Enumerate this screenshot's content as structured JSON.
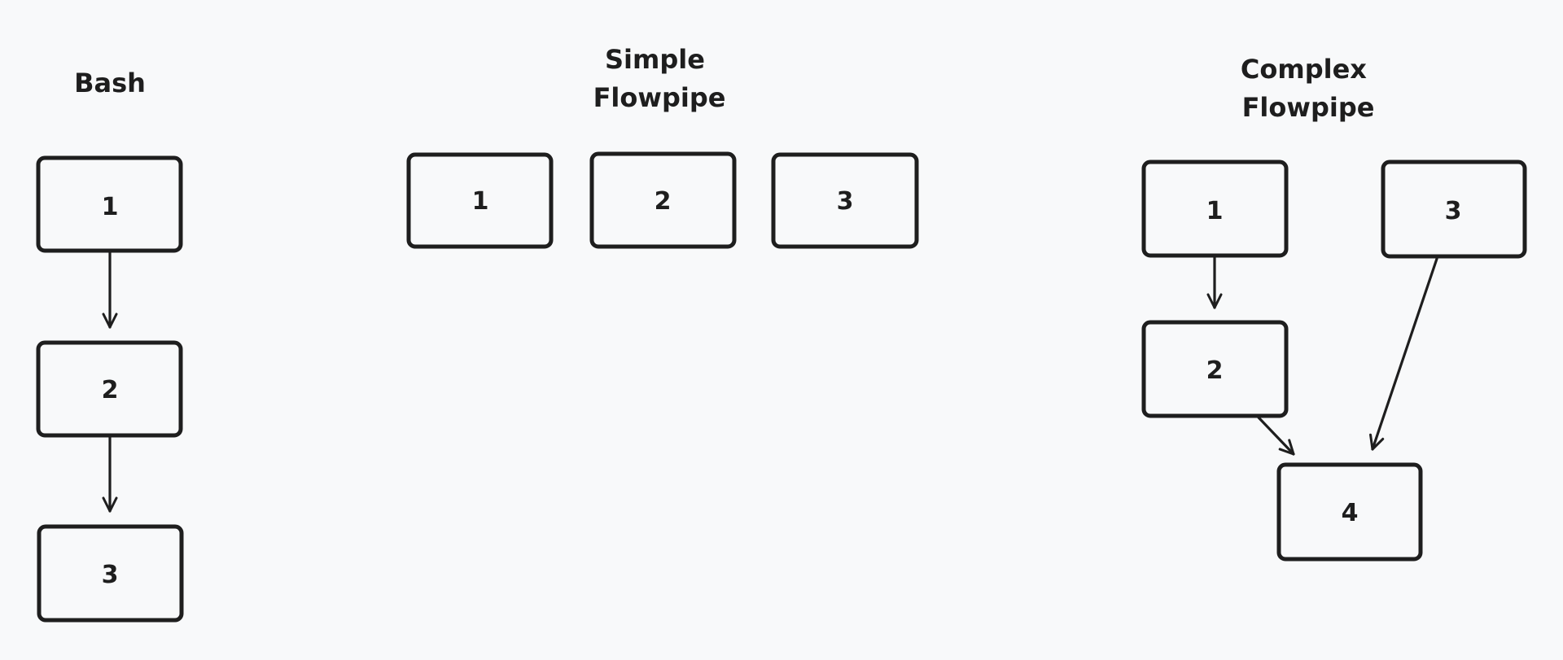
{
  "sections": {
    "bash": {
      "title": [
        "Bash"
      ],
      "boxes": [
        "1",
        "2",
        "3"
      ]
    },
    "simple": {
      "title": [
        "Simple",
        "Flowpipe"
      ],
      "boxes": [
        "1",
        "2",
        "3"
      ]
    },
    "complex": {
      "title": [
        "Complex",
        "Flowpipe"
      ],
      "boxes": [
        "1",
        "2",
        "3",
        "4"
      ]
    }
  },
  "edges": {
    "bash": [
      [
        "1",
        "2"
      ],
      [
        "2",
        "3"
      ]
    ],
    "simple": [],
    "complex": [
      [
        "1",
        "2"
      ],
      [
        "2",
        "4"
      ],
      [
        "3",
        "4"
      ]
    ]
  },
  "colors": {
    "background": "#f8f9fa",
    "stroke": "#1e1e1e"
  }
}
